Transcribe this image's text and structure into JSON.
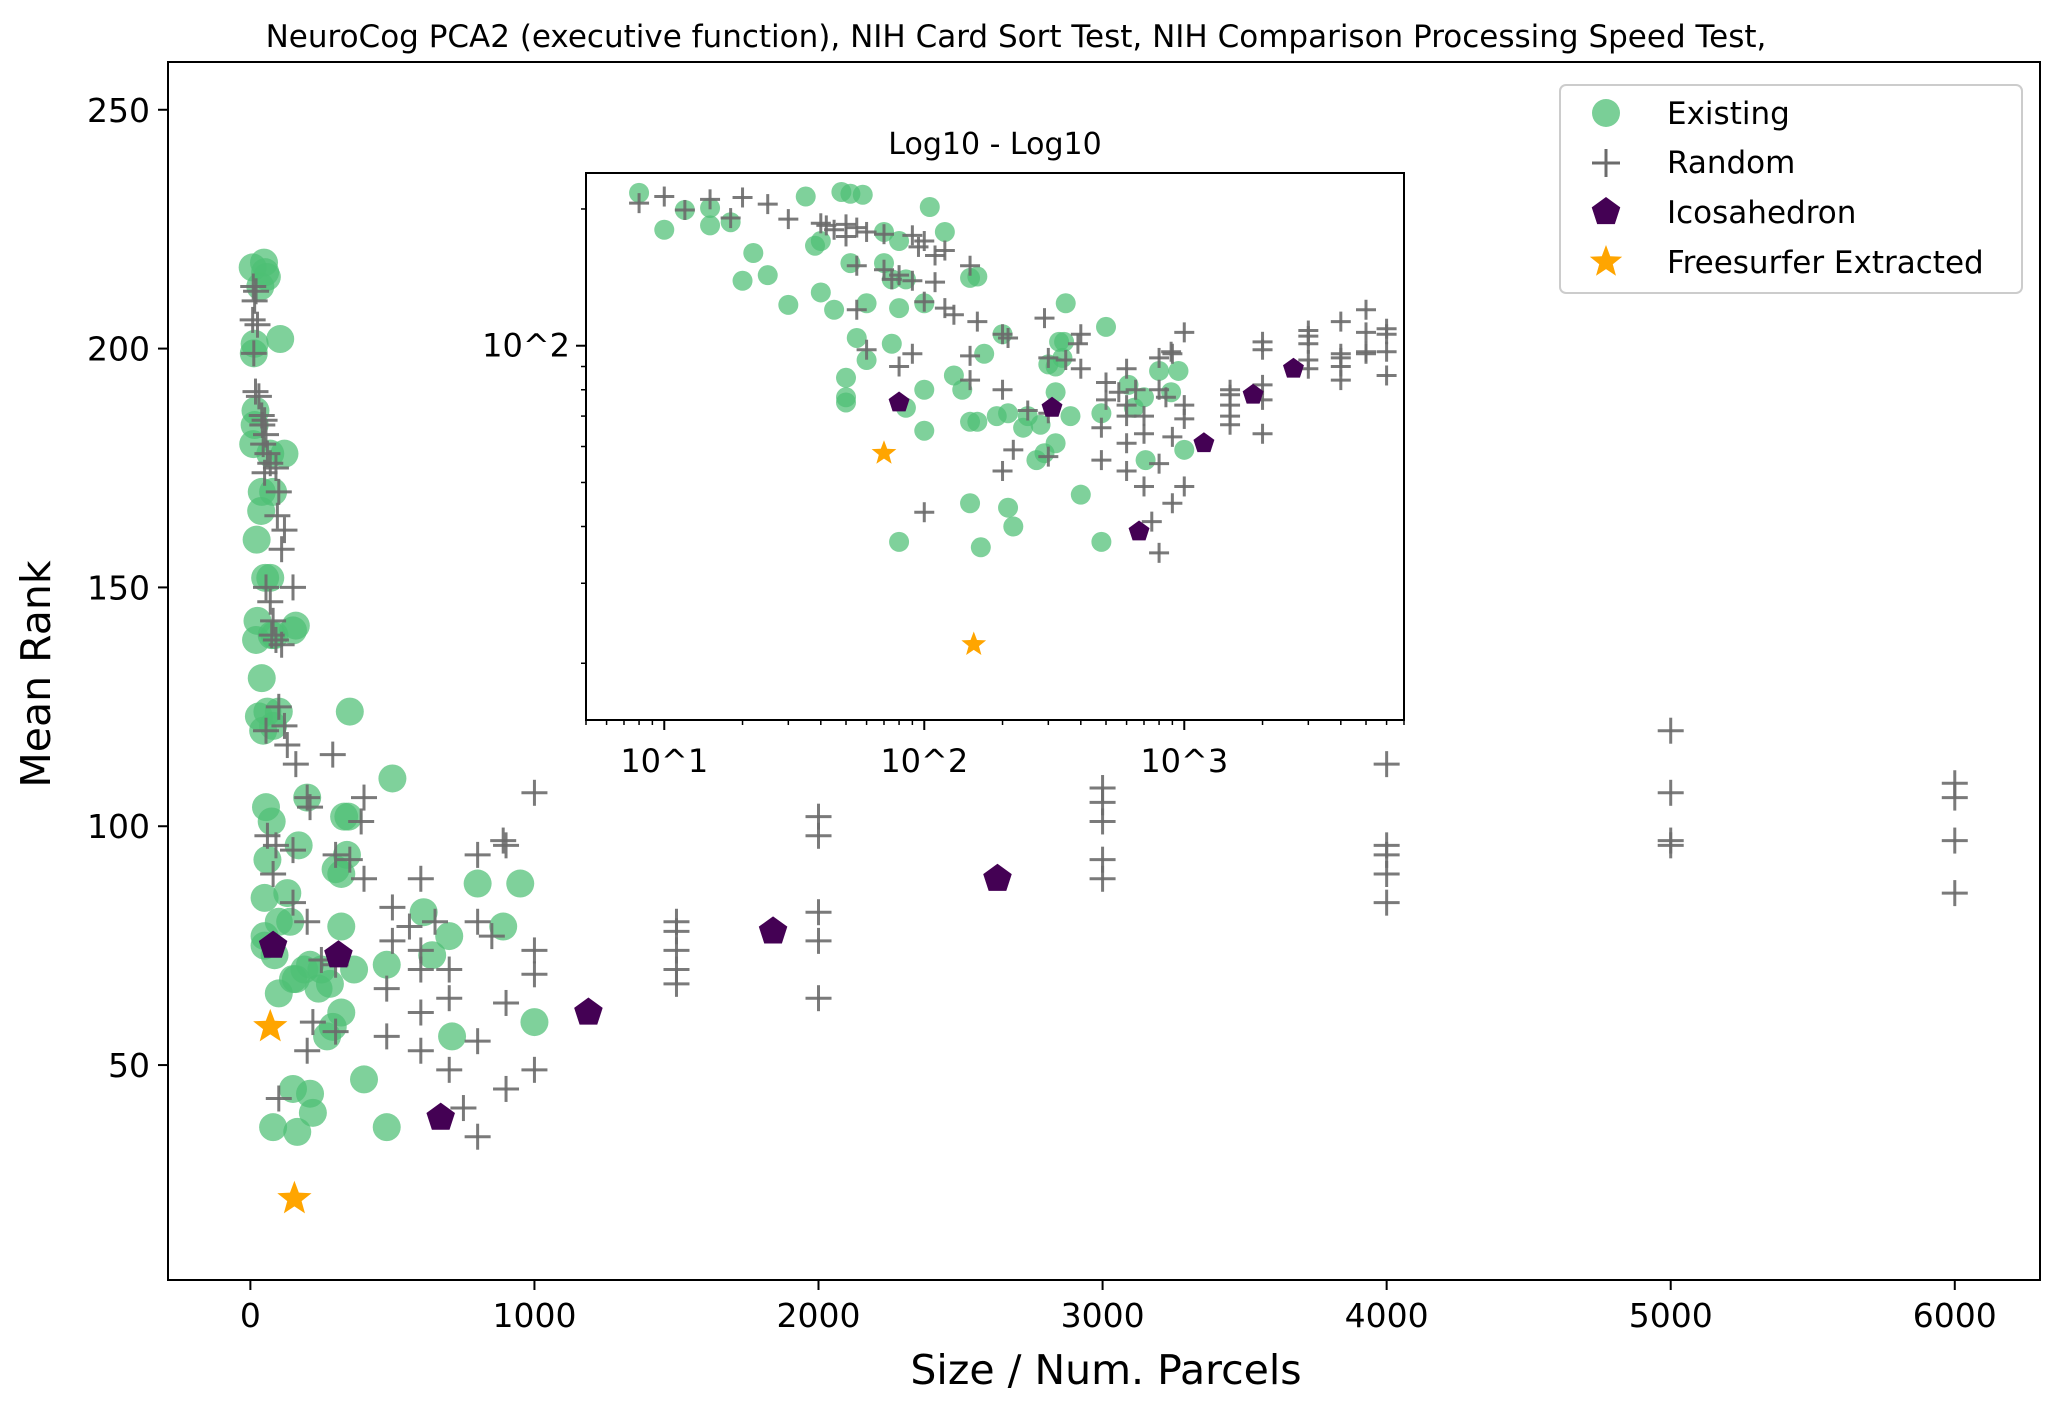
{
  "chart_data": [
    {
      "type": "scatter",
      "title": "NeuroCog PCA2 (executive function), NIH Card Sort Test, NIH Comparison Processing Speed Test,",
      "xlabel": "Size / Num. Parcels",
      "ylabel": "Mean Rank",
      "xlim": [
        -290,
        6300
      ],
      "ylim": [
        5,
        260
      ],
      "xticks": [
        0,
        1000,
        2000,
        3000,
        4000,
        5000,
        6000
      ],
      "yticks": [
        50,
        100,
        150,
        200,
        250
      ],
      "grid": false,
      "legend_position": "top-right",
      "series": [
        {
          "name": "Existing",
          "marker": "circle",
          "color": "#4dbf74",
          "points": [
            [
              8,
              217
            ],
            [
              15,
              201
            ],
            [
              12,
              199
            ],
            [
              18,
              187
            ],
            [
              10,
              180
            ],
            [
              15,
              184
            ],
            [
              22,
              160
            ],
            [
              25,
              143
            ],
            [
              20,
              139
            ],
            [
              30,
              123
            ],
            [
              40,
              131
            ],
            [
              45,
              120
            ],
            [
              48,
              218
            ],
            [
              52,
              216
            ],
            [
              58,
              215
            ],
            [
              35,
              213
            ],
            [
              40,
              170
            ],
            [
              38,
              166
            ],
            [
              70,
              178
            ],
            [
              80,
              170
            ],
            [
              105,
              202
            ],
            [
              120,
              178
            ],
            [
              52,
              152
            ],
            [
              70,
              152
            ],
            [
              85,
              140
            ],
            [
              75,
              140
            ],
            [
              150,
              141
            ],
            [
              160,
              142
            ],
            [
              60,
              124
            ],
            [
              100,
              124
            ],
            [
              350,
              124
            ],
            [
              80,
              121
            ],
            [
              500,
              110
            ],
            [
              55,
              104
            ],
            [
              75,
              101
            ],
            [
              200,
              106
            ],
            [
              330,
              102
            ],
            [
              345,
              102
            ],
            [
              60,
              93
            ],
            [
              170,
              96
            ],
            [
              340,
              94
            ],
            [
              300,
              91
            ],
            [
              320,
              90
            ],
            [
              50,
              85
            ],
            [
              130,
              86
            ],
            [
              140,
              80
            ],
            [
              250,
              70
            ],
            [
              280,
              67
            ],
            [
              100,
              80
            ],
            [
              50,
              77
            ],
            [
              50,
              75
            ],
            [
              320,
              79
            ],
            [
              85,
              73
            ],
            [
              190,
              70
            ],
            [
              210,
              71
            ],
            [
              160,
              68
            ],
            [
              150,
              68
            ],
            [
              365,
              70
            ],
            [
              480,
              71
            ],
            [
              610,
              82
            ],
            [
              640,
              73
            ],
            [
              700,
              77
            ],
            [
              800,
              88
            ],
            [
              950,
              88
            ],
            [
              890,
              79
            ],
            [
              240,
              66
            ],
            [
              100,
              65
            ],
            [
              290,
              58
            ],
            [
              270,
              56
            ],
            [
              320,
              61
            ],
            [
              710,
              56
            ],
            [
              1000,
              59
            ],
            [
              400,
              47
            ],
            [
              150,
              45
            ],
            [
              210,
              44
            ],
            [
              220,
              40
            ],
            [
              80,
              37
            ],
            [
              165,
              36
            ],
            [
              480,
              37
            ]
          ]
        },
        {
          "name": "Random",
          "marker": "plus",
          "color": "#6b6b6b",
          "points": [
            [
              10,
              213
            ],
            [
              20,
              212
            ],
            [
              15,
              210
            ],
            [
              8,
              206
            ],
            [
              25,
              205
            ],
            [
              12,
              199
            ],
            [
              18,
              191
            ],
            [
              30,
              190
            ],
            [
              40,
              186
            ],
            [
              50,
              185
            ],
            [
              42,
              184
            ],
            [
              55,
              182
            ],
            [
              45,
              180
            ],
            [
              60,
              178
            ],
            [
              70,
              176
            ],
            [
              50,
              174
            ],
            [
              90,
              175
            ],
            [
              100,
              170
            ],
            [
              95,
              165
            ],
            [
              120,
              162
            ],
            [
              110,
              158
            ],
            [
              55,
              150
            ],
            [
              70,
              147
            ],
            [
              150,
              150
            ],
            [
              80,
              143
            ],
            [
              75,
              140
            ],
            [
              90,
              139
            ],
            [
              110,
              138
            ],
            [
              100,
              125
            ],
            [
              55,
              120
            ],
            [
              120,
              121
            ],
            [
              130,
              117
            ],
            [
              160,
              113
            ],
            [
              290,
              115
            ],
            [
              400,
              106
            ],
            [
              200,
              106
            ],
            [
              210,
              104
            ],
            [
              390,
              101
            ],
            [
              60,
              98
            ],
            [
              90,
              96
            ],
            [
              150,
              95
            ],
            [
              80,
              90
            ],
            [
              300,
              94
            ],
            [
              350,
              93
            ],
            [
              1000,
              107
            ],
            [
              2000,
              102
            ],
            [
              2000,
              98
            ],
            [
              3000,
              108
            ],
            [
              3000,
              105
            ],
            [
              3000,
              101
            ],
            [
              3000,
              93
            ],
            [
              3000,
              89
            ],
            [
              4000,
              113
            ],
            [
              4000,
              96
            ],
            [
              4000,
              94
            ],
            [
              4000,
              90
            ],
            [
              4000,
              84
            ],
            [
              5000,
              120
            ],
            [
              5000,
              107
            ],
            [
              5000,
              97
            ],
            [
              5000,
              96
            ],
            [
              6000,
              109
            ],
            [
              6000,
              106
            ],
            [
              6000,
              97
            ],
            [
              6000,
              86
            ],
            [
              400,
              89
            ],
            [
              600,
              89
            ],
            [
              800,
              94
            ],
            [
              900,
              96
            ],
            [
              890,
              97
            ],
            [
              150,
              84
            ],
            [
              200,
              80
            ],
            [
              500,
              83
            ],
            [
              650,
              80
            ],
            [
              800,
              80
            ],
            [
              850,
              77
            ],
            [
              1500,
              80
            ],
            [
              1500,
              78
            ],
            [
              1500,
              74
            ],
            [
              1500,
              70
            ],
            [
              1500,
              67
            ],
            [
              2000,
              82
            ],
            [
              2000,
              76
            ],
            [
              2000,
              64
            ],
            [
              500,
              76
            ],
            [
              560,
              79
            ],
            [
              600,
              74
            ],
            [
              300,
              71
            ],
            [
              250,
              72
            ],
            [
              600,
              70
            ],
            [
              700,
              70
            ],
            [
              1000,
              74
            ],
            [
              1000,
              69
            ],
            [
              700,
              64
            ],
            [
              900,
              63
            ],
            [
              480,
              66
            ],
            [
              600,
              61
            ],
            [
              220,
              59
            ],
            [
              300,
              57
            ],
            [
              480,
              56
            ],
            [
              600,
              53
            ],
            [
              700,
              49
            ],
            [
              750,
              41
            ],
            [
              800,
              55
            ],
            [
              800,
              35
            ],
            [
              200,
              53
            ],
            [
              1000,
              49
            ],
            [
              900,
              45
            ],
            [
              100,
              43
            ]
          ]
        },
        {
          "name": "Icosahedron",
          "marker": "pentagon",
          "color": "#440154",
          "points": [
            [
              80,
              75
            ],
            [
              310,
              73
            ],
            [
              670,
              39
            ],
            [
              1190,
              61
            ],
            [
              1840,
              78
            ],
            [
              2630,
              89
            ]
          ]
        },
        {
          "name": "Freesurfer Extracted",
          "marker": "star",
          "color": "#ffa500",
          "points": [
            [
              70,
              58
            ],
            [
              155,
              22
            ]
          ]
        }
      ]
    },
    {
      "type": "scatter",
      "title": "Log10 - Log10",
      "xscale": "log",
      "yscale": "log",
      "xlim": [
        5,
        7000
      ],
      "ylim": [
        15,
        240
      ],
      "xticks": [
        "10^1",
        "10^2",
        "10^3"
      ],
      "yticks": [
        "10^2"
      ],
      "note": "same data as main plot on log-log axes"
    }
  ],
  "legend": {
    "entries": [
      "Existing",
      "Random",
      "Icosahedron",
      "Freesurfer Extracted"
    ]
  }
}
